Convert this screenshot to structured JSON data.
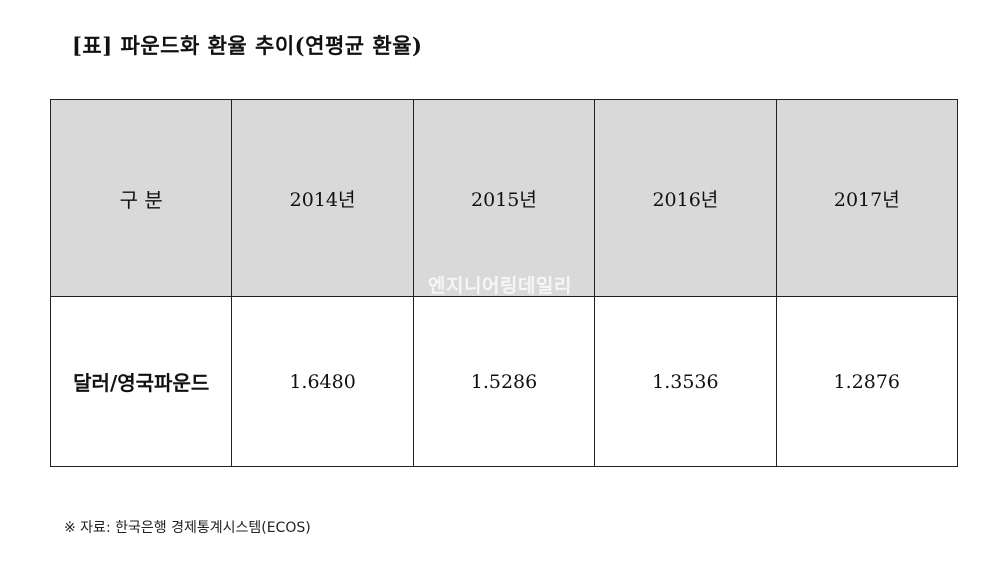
{
  "title": "[표] 파운드화 환율 추이(연평균 환율)",
  "table": {
    "header": {
      "label": "구 분",
      "years": [
        "2014년",
        "2015년",
        "2016년",
        "2017년"
      ]
    },
    "rows": [
      {
        "label": "달러/영국파운드",
        "values": [
          "1.6480",
          "1.5286",
          "1.3536",
          "1.2876"
        ]
      }
    ]
  },
  "watermark": "엔지니어링데일리",
  "source": "※ 자료: 한국은행 경제통계시스템(ECOS)",
  "colors": {
    "header_bg": "#d9d9d9",
    "border": "#222222"
  }
}
